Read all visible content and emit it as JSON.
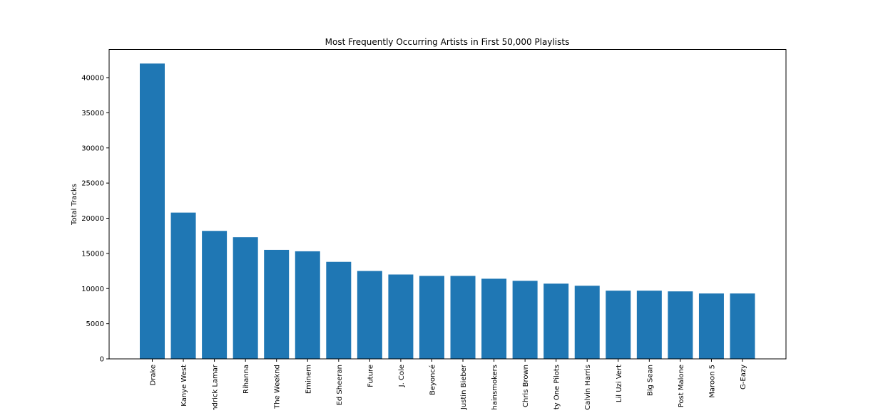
{
  "chart_data": {
    "type": "bar",
    "title": "Most Frequently Occurring Artists in First 50,000 Playlists",
    "xlabel": "",
    "ylabel": "Total Tracks",
    "ylim": [
      0,
      44000
    ],
    "yticks": [
      0,
      5000,
      10000,
      15000,
      20000,
      25000,
      30000,
      35000,
      40000
    ],
    "grid": false,
    "bar_color": "#1f77b4",
    "categories": [
      "Drake",
      "Kanye West",
      "Kendrick Lamar",
      "Rihanna",
      "The Weeknd",
      "Eminem",
      "Ed Sheeran",
      "Future",
      "J. Cole",
      "Beyoncé",
      "Justin Bieber",
      "The Chainsmokers",
      "Chris Brown",
      "Twenty One Pilots",
      "Calvin Harris",
      "Lil Uzi Vert",
      "Big Sean",
      "Post Malone",
      "Maroon 5",
      "G-Eazy"
    ],
    "values": [
      42000,
      20800,
      18200,
      17300,
      15500,
      15300,
      13800,
      12500,
      12000,
      11800,
      11800,
      11400,
      11100,
      10700,
      10400,
      9700,
      9700,
      9600,
      9300,
      9300
    ]
  }
}
